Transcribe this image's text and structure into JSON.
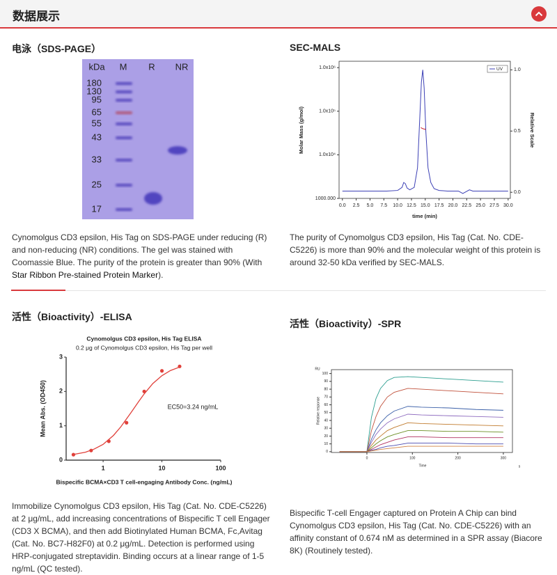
{
  "header": {
    "title": "数据展示"
  },
  "sections": [
    {
      "title": "电泳（SDS-PAGE）",
      "gel": {
        "unit": "kDa",
        "lanes": [
          "M",
          "R",
          "NR"
        ],
        "markers": [
          180,
          130,
          95,
          65,
          55,
          43,
          33,
          25,
          17
        ]
      },
      "caption": {
        "text": "Cynomolgus CD3 epsilon, His Tag on SDS-PAGE under reducing (R) and non-reducing (NR) conditions. The gel was stained with Coomassie Blue. The purity of the protein is greater than 90% (With ",
        "link": "Star Ribbon Pre-stained Protein Marker",
        "end": ")."
      }
    },
    {
      "title": "SEC-MALS",
      "caption": "The purity of Cynomolgus CD3 epsilon, His Tag (Cat. No. CDE-C5226) is more than 90% and the molecular weight of this protein is around 32-50 kDa verified by SEC-MALS."
    },
    {
      "title": "活性（Bioactivity）-ELISA",
      "caption": "Immobilize Cynomolgus CD3 epsilon, His Tag (Cat. No. CDE-C5226) at 2 μg/mL, add increasing concentrations of Bispecific T cell Engager (CD3 X BCMA), and then add Biotinylated Human BCMA, Fc,Avitag (Cat. No. BC7-H82F0) at 0.2 μg/mL. Detection is performed using HRP-conjugated streptavidin. Binding occurs at a linear range of 1-5 ng/mL (QC tested)."
    },
    {
      "title": "活性（Bioactivity）-SPR",
      "caption": "Bispecific T-cell Engager captured on Protein A Chip can bind Cynomolgus CD3 epsilon, His Tag (Cat. No. CDE-C5226) with an affinity constant of 0.674 nM as determined in a SPR assay (Biacore 8K) (Routinely tested)."
    }
  ],
  "chart_data": [
    {
      "type": "line",
      "ylabel": "Molar Mass (g/mol)",
      "y2label": "Relative Scale",
      "xlabel": "time (min)",
      "log_y": true,
      "legend": "upper right",
      "xlim": [
        -0.6,
        30.4
      ],
      "xticks": [
        {
          "value": 0,
          "label": "0.0"
        },
        2.5,
        {
          "value": 5,
          "label": "5.0"
        },
        7.5,
        {
          "value": 10,
          "label": "10.0"
        },
        12.5,
        {
          "value": 15,
          "label": "15.0"
        },
        17.5,
        {
          "value": 20,
          "label": "20.0"
        },
        22.5,
        {
          "value": 25,
          "label": "25.0"
        },
        27.5,
        {
          "value": 30,
          "label": "30.0"
        }
      ],
      "ylim": [
        1000,
        1400000
      ],
      "yticks": [
        {
          "value": 1000,
          "label": "1000.000"
        },
        {
          "value": 10000,
          "label": "1.0x10⁴"
        },
        {
          "value": 100000,
          "label": "1.0x10⁵"
        },
        {
          "value": 1000000,
          "label": "1.0x10⁶"
        }
      ],
      "y2lim": [
        -0.05,
        1.07
      ],
      "y2ticks": [
        {
          "value": 0,
          "label": "0.0"
        },
        0.5,
        {
          "value": 1,
          "label": "1.0"
        }
      ],
      "series": [
        {
          "name": "UV",
          "color": "#3b3fb5",
          "axis": "y2",
          "x": [
            0,
            2,
            4,
            6,
            8,
            10,
            10.8,
            11.1,
            11.4,
            11.7,
            12.2,
            13,
            13.6,
            14,
            14.3,
            14.55,
            14.8,
            15.1,
            15.5,
            16,
            16.6,
            17.5,
            19,
            21,
            21.8,
            22.4,
            23,
            23.6,
            25,
            27,
            30
          ],
          "values": [
            0.01,
            0.01,
            0.01,
            0.01,
            0.01,
            0.015,
            0.04,
            0.08,
            0.07,
            0.035,
            0.02,
            0.04,
            0.2,
            0.6,
            0.9,
            1.0,
            0.85,
            0.5,
            0.2,
            0.08,
            0.03,
            0.015,
            0.01,
            0.01,
            -0.01,
            0.005,
            0.02,
            0.01,
            0.01,
            0.01,
            0.01
          ]
        },
        {
          "color": "#c8141e",
          "x": [
            14.2,
            14.5,
            14.8,
            15.1
          ],
          "values": [
            42000,
            40000,
            39000,
            38000
          ]
        }
      ]
    },
    {
      "type": "line",
      "title": "Cynomolgus CD3 epsilon, His Tag ELISA",
      "subtitle": "0.2 μg of Cynomolgus CD3 epsilon, His Tag per well",
      "xlabel": "Bispecific BCMA×CD3 T cell-engaging Antibody Conc. (ng/mL)",
      "ylabel": "Mean Abs. (OD450)",
      "annotation": "EC50=3.24 ng/mL",
      "log_x": true,
      "xlim": [
        0.235,
        100
      ],
      "xticks": [
        1,
        10,
        100
      ],
      "ylim": [
        0,
        3
      ],
      "yticks": [
        0,
        1,
        2,
        3
      ],
      "series": [
        {
          "type": "scatter",
          "color": "#e0403a",
          "x": [
            0.3125,
            0.625,
            1.25,
            2.5,
            5,
            10,
            20
          ],
          "values": [
            0.16,
            0.28,
            0.55,
            1.09,
            2.0,
            2.6,
            2.73
          ]
        },
        {
          "type": "line",
          "color": "#e0403a",
          "x": [
            0.3,
            0.5,
            0.7,
            1,
            1.5,
            2,
            3,
            4,
            5,
            7,
            10,
            14,
            20
          ],
          "values": [
            0.16,
            0.23,
            0.32,
            0.46,
            0.72,
            0.97,
            1.39,
            1.7,
            1.93,
            2.23,
            2.46,
            2.61,
            2.71
          ]
        }
      ]
    },
    {
      "type": "line",
      "unit_label": "RU",
      "ylabel": "Relative response",
      "xlabel": "Time",
      "x_unit": "s",
      "xlim": [
        -78,
        320
      ],
      "xticks": [
        0,
        100,
        200,
        300
      ],
      "ylim": [
        -1,
        105
      ],
      "yticks": [
        0,
        10,
        20,
        30,
        40,
        50,
        60,
        70,
        80,
        90,
        100
      ],
      "x": [
        -60,
        -30,
        0,
        10,
        20,
        30,
        45,
        60,
        90,
        120,
        180,
        240,
        300
      ],
      "series": [
        {
          "color": "#2b9e8f",
          "values": [
            0,
            0,
            0,
            44,
            68,
            81,
            91,
            95,
            96,
            95,
            93,
            91,
            89
          ]
        },
        {
          "color": "#c0503a",
          "values": [
            0,
            0,
            0,
            27,
            45,
            58,
            70,
            76,
            81,
            80,
            78,
            76,
            74
          ]
        },
        {
          "color": "#3a5fa8",
          "values": [
            0,
            0,
            0,
            16,
            28,
            37,
            46,
            52,
            58,
            57,
            56,
            54,
            53
          ]
        },
        {
          "color": "#8e6bbf",
          "values": [
            0,
            0,
            0,
            12,
            22,
            29,
            37,
            42,
            48,
            47,
            46,
            45,
            44
          ]
        },
        {
          "color": "#c07a2c",
          "values": [
            0,
            0,
            0,
            8,
            15,
            20,
            27,
            31,
            37,
            36,
            35,
            34,
            33
          ]
        },
        {
          "color": "#6b8e23",
          "values": [
            0,
            0,
            0,
            5,
            10,
            14,
            19,
            22,
            27,
            27,
            26,
            26,
            25
          ]
        },
        {
          "color": "#b03060",
          "values": [
            0,
            0,
            0,
            3,
            6,
            9,
            12,
            15,
            19,
            19,
            18,
            18,
            18
          ]
        },
        {
          "color": "#4a4ab0",
          "values": [
            0,
            0,
            0,
            2,
            3,
            5,
            7,
            8,
            11,
            11,
            11,
            10,
            10
          ]
        },
        {
          "color": "#d08040",
          "values": [
            0,
            0,
            0,
            1,
            2,
            3,
            4,
            5,
            7,
            7,
            7,
            7,
            7
          ]
        }
      ]
    }
  ]
}
